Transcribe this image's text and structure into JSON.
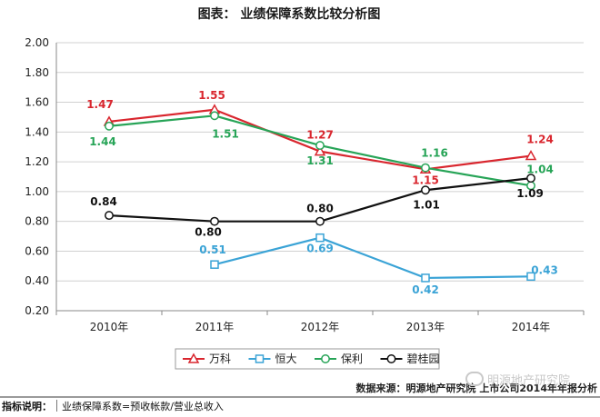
{
  "chart_data": {
    "type": "line",
    "title": "图表： 业绩保障系数比较分析图",
    "categories": [
      "2010年",
      "2011年",
      "2012年",
      "2013年",
      "2014年"
    ],
    "ylim": [
      0.2,
      2.0
    ],
    "yticks": [
      "2.00",
      "1.80",
      "1.60",
      "1.40",
      "1.20",
      "1.00",
      "0.80",
      "0.60",
      "0.40",
      "0.20"
    ],
    "grid": true,
    "legend_position": "bottom",
    "series": [
      {
        "name": "万科",
        "color": "#d9262e",
        "marker": "triangle",
        "values": [
          1.47,
          1.55,
          1.27,
          1.15,
          1.24
        ]
      },
      {
        "name": "恒大",
        "color": "#3aa3d6",
        "marker": "square",
        "values": [
          null,
          0.51,
          0.69,
          0.42,
          0.43
        ]
      },
      {
        "name": "保利",
        "color": "#27a457",
        "marker": "circle",
        "values": [
          1.44,
          1.51,
          1.31,
          1.16,
          1.04
        ]
      },
      {
        "name": "碧桂园",
        "color": "#111111",
        "marker": "circle",
        "values": [
          0.84,
          0.8,
          0.8,
          1.01,
          1.09
        ]
      }
    ],
    "source": "数据来源：明源地产研究院 上市公司2014年年报分析"
  },
  "footnote": {
    "label": "指标说明：",
    "text": "业绩保障系数=预收帐款/营业总收入"
  },
  "watermark": "明源地产研究院"
}
